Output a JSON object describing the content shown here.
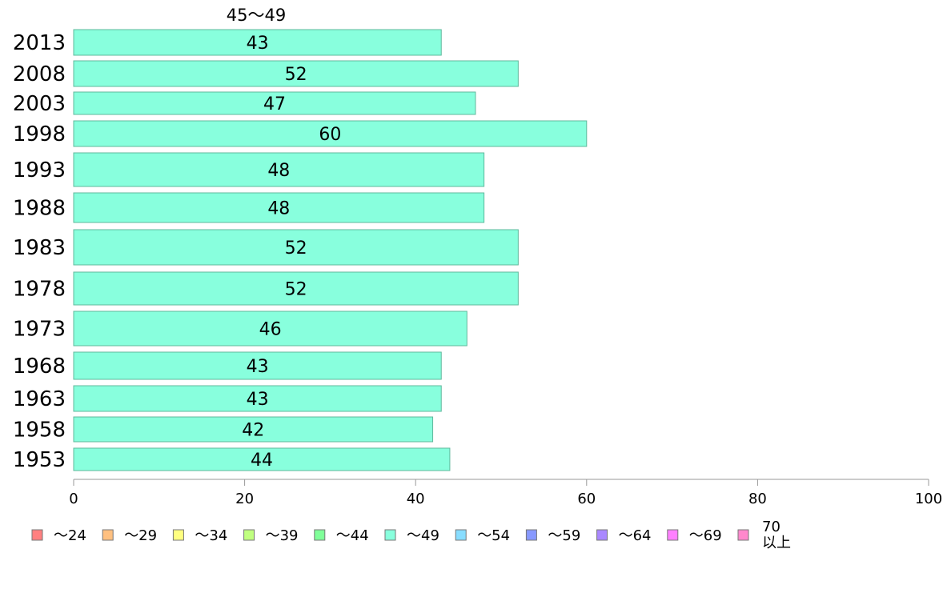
{
  "chart_data": {
    "type": "bar",
    "orientation": "horizontal",
    "series_label": "45〜49",
    "categories": [
      "2013",
      "2008",
      "2003",
      "1998",
      "1993",
      "1988",
      "1983",
      "1978",
      "1973",
      "1968",
      "1963",
      "1958",
      "1953"
    ],
    "values": [
      43,
      52,
      47,
      60,
      48,
      48,
      52,
      52,
      46,
      43,
      43,
      42,
      44
    ],
    "bar_color": "#88ffdd",
    "bar_stroke": "#5fb89c",
    "xlim": [
      0,
      100
    ],
    "x_ticks": [
      0,
      20,
      40,
      60,
      80,
      100
    ],
    "grid": false,
    "legend_position": "bottom",
    "legend": [
      {
        "label": "〜24",
        "color": "#ff8080"
      },
      {
        "label": "〜29",
        "color": "#ffc080"
      },
      {
        "label": "〜34",
        "color": "#ffff80"
      },
      {
        "label": "〜39",
        "color": "#c0ff80"
      },
      {
        "label": "〜44",
        "color": "#80ff99"
      },
      {
        "label": "〜49",
        "color": "#88ffdd"
      },
      {
        "label": "〜54",
        "color": "#88ddff"
      },
      {
        "label": "〜59",
        "color": "#8899ff"
      },
      {
        "label": "〜64",
        "color": "#aa88ff"
      },
      {
        "label": "〜69",
        "color": "#ff80ff"
      },
      {
        "label": "70 以上",
        "color": "#ff88cc",
        "lines": [
          "70",
          "以上"
        ]
      }
    ]
  }
}
